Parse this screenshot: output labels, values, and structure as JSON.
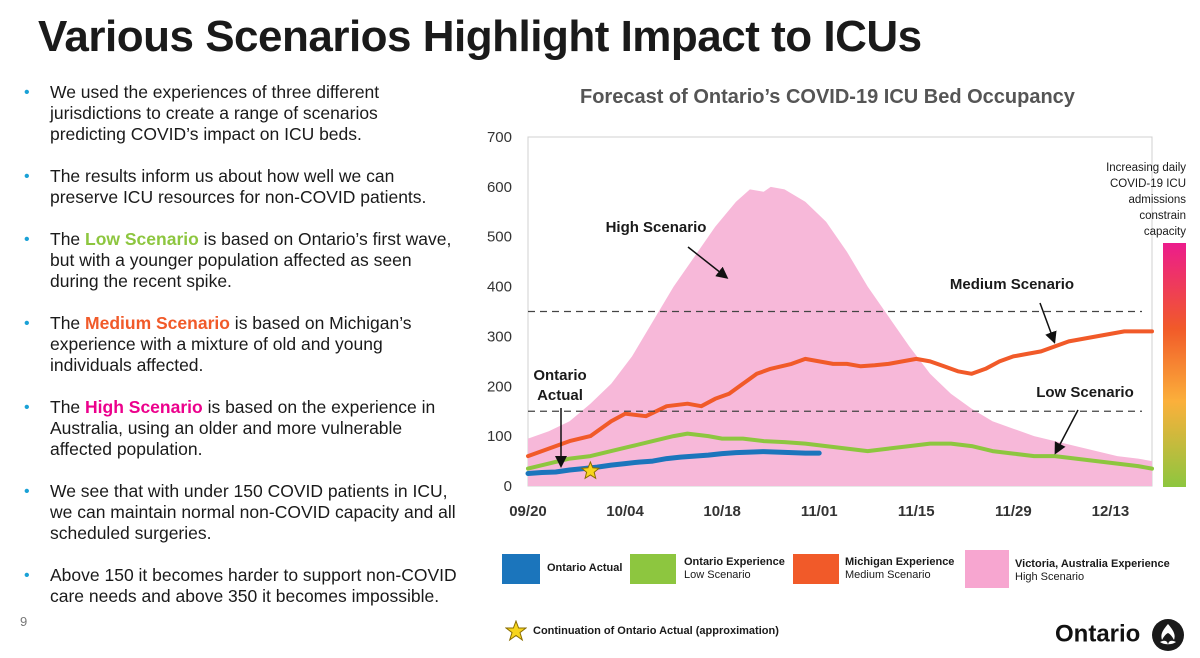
{
  "page": {
    "title": "Various Scenarios Highlight Impact to ICUs",
    "page_number": "9",
    "logo_text": "Ontario"
  },
  "bullets": [
    {
      "pre": "We used the experiences of three different jurisdictions to create a range of scenarios predicting COVID’s impact on ICU beds.",
      "hl": "",
      "post": ""
    },
    {
      "pre": "The results inform us about how well we can preserve ICU resources for non-COVID patients.",
      "hl": "",
      "post": ""
    },
    {
      "pre": "The ",
      "hl": "Low Scenario",
      "post": " is based on Ontario’s first wave, but with a younger population affected as seen during the recent spike."
    },
    {
      "pre": "The ",
      "hl": "Medium Scenario",
      "post": " is based on Michigan’s experience with a mixture of old and young individuals affected."
    },
    {
      "pre": "The ",
      "hl": "High Scenario",
      "post": " is based on the experience in Australia, using an older and more vulnerable affected population."
    },
    {
      "pre": "We see that with under 150 COVID patients in ICU, we can maintain normal non-COVID capacity and all scheduled surgeries.",
      "hl": "",
      "post": ""
    },
    {
      "pre": "Above 150 it becomes harder to support non-COVID care needs and above 350 it becomes impossible.",
      "hl": "",
      "post": ""
    }
  ],
  "colors": {
    "accent_bullet": "#1aa1d6",
    "low": "#8dc63f",
    "medium": "#f15a29",
    "high_fill": "#f7b8d9",
    "high_text": "#ec008c",
    "actual": "#1b75bc",
    "star": "#f7d51d"
  },
  "chart_data": {
    "type": "area",
    "title": "Forecast of Ontario’s COVID-19 ICU Bed Occupancy",
    "xlabel": "",
    "ylabel": "",
    "ylim": [
      0,
      700
    ],
    "y_ticks": [
      0,
      100,
      200,
      300,
      400,
      500,
      600,
      700
    ],
    "x_ticks": [
      {
        "label": "09/20",
        "day": 0
      },
      {
        "label": "10/04",
        "day": 14
      },
      {
        "label": "10/18",
        "day": 28
      },
      {
        "label": "11/01",
        "day": 42
      },
      {
        "label": "11/15",
        "day": 56
      },
      {
        "label": "11/29",
        "day": 70
      },
      {
        "label": "12/13",
        "day": 84
      }
    ],
    "x_range_days": [
      0,
      90
    ],
    "reference_lines": [
      150,
      350
    ],
    "series": [
      {
        "name": "Victoria, Australia Experience",
        "key": "high",
        "style": "area",
        "points": [
          [
            0,
            95
          ],
          [
            3,
            110
          ],
          [
            6,
            130
          ],
          [
            9,
            165
          ],
          [
            12,
            205
          ],
          [
            15,
            260
          ],
          [
            18,
            330
          ],
          [
            21,
            400
          ],
          [
            24,
            460
          ],
          [
            27,
            520
          ],
          [
            30,
            570
          ],
          [
            32,
            595
          ],
          [
            34,
            590
          ],
          [
            35,
            600
          ],
          [
            37,
            595
          ],
          [
            40,
            570
          ],
          [
            43,
            530
          ],
          [
            46,
            470
          ],
          [
            49,
            400
          ],
          [
            52,
            340
          ],
          [
            55,
            280
          ],
          [
            58,
            225
          ],
          [
            61,
            185
          ],
          [
            64,
            155
          ],
          [
            67,
            130
          ],
          [
            70,
            115
          ],
          [
            73,
            100
          ],
          [
            76,
            90
          ],
          [
            79,
            80
          ],
          [
            82,
            70
          ],
          [
            85,
            60
          ],
          [
            88,
            55
          ],
          [
            90,
            50
          ]
        ]
      },
      {
        "name": "Michigan Experience",
        "key": "medium",
        "style": "line",
        "points": [
          [
            0,
            60
          ],
          [
            3,
            75
          ],
          [
            6,
            90
          ],
          [
            9,
            100
          ],
          [
            12,
            130
          ],
          [
            14,
            145
          ],
          [
            17,
            140
          ],
          [
            20,
            160
          ],
          [
            23,
            165
          ],
          [
            25,
            160
          ],
          [
            27,
            175
          ],
          [
            29,
            185
          ],
          [
            31,
            205
          ],
          [
            33,
            225
          ],
          [
            35,
            235
          ],
          [
            38,
            245
          ],
          [
            40,
            255
          ],
          [
            42,
            250
          ],
          [
            44,
            245
          ],
          [
            46,
            245
          ],
          [
            48,
            240
          ],
          [
            50,
            242
          ],
          [
            52,
            245
          ],
          [
            54,
            250
          ],
          [
            56,
            255
          ],
          [
            58,
            250
          ],
          [
            60,
            240
          ],
          [
            62,
            230
          ],
          [
            64,
            225
          ],
          [
            66,
            235
          ],
          [
            68,
            250
          ],
          [
            70,
            260
          ],
          [
            72,
            265
          ],
          [
            74,
            270
          ],
          [
            76,
            280
          ],
          [
            78,
            290
          ],
          [
            80,
            295
          ],
          [
            82,
            300
          ],
          [
            84,
            305
          ],
          [
            86,
            310
          ],
          [
            88,
            310
          ],
          [
            90,
            310
          ]
        ]
      },
      {
        "name": "Ontario Experience",
        "key": "low",
        "style": "line",
        "points": [
          [
            0,
            35
          ],
          [
            3,
            45
          ],
          [
            6,
            55
          ],
          [
            9,
            60
          ],
          [
            12,
            70
          ],
          [
            15,
            80
          ],
          [
            18,
            90
          ],
          [
            21,
            100
          ],
          [
            23,
            105
          ],
          [
            26,
            100
          ],
          [
            28,
            95
          ],
          [
            31,
            95
          ],
          [
            34,
            90
          ],
          [
            37,
            88
          ],
          [
            40,
            85
          ],
          [
            43,
            80
          ],
          [
            46,
            75
          ],
          [
            49,
            70
          ],
          [
            52,
            75
          ],
          [
            55,
            80
          ],
          [
            58,
            85
          ],
          [
            61,
            85
          ],
          [
            64,
            80
          ],
          [
            67,
            70
          ],
          [
            70,
            65
          ],
          [
            73,
            60
          ],
          [
            76,
            60
          ],
          [
            79,
            55
          ],
          [
            82,
            50
          ],
          [
            85,
            45
          ],
          [
            88,
            40
          ],
          [
            90,
            35
          ]
        ]
      },
      {
        "name": "Ontario Actual",
        "key": "actual",
        "style": "line",
        "points": [
          [
            0,
            25
          ],
          [
            2,
            27
          ],
          [
            4,
            28
          ],
          [
            6,
            32
          ],
          [
            8,
            35
          ],
          [
            10,
            38
          ],
          [
            12,
            42
          ],
          [
            14,
            45
          ],
          [
            16,
            48
          ],
          [
            18,
            50
          ],
          [
            20,
            55
          ],
          [
            22,
            58
          ],
          [
            24,
            60
          ],
          [
            26,
            62
          ],
          [
            28,
            65
          ],
          [
            30,
            67
          ],
          [
            32,
            68
          ],
          [
            34,
            69
          ],
          [
            36,
            68
          ],
          [
            38,
            67
          ],
          [
            40,
            66
          ],
          [
            42,
            66
          ]
        ]
      }
    ],
    "star_marker": {
      "day": 9,
      "value": 30
    },
    "annotations": [
      {
        "text": "High Scenario",
        "key": "high_ann"
      },
      {
        "text": "Medium Scenario",
        "key": "med_ann"
      },
      {
        "text": "Low Scenario",
        "key": "low_ann"
      },
      {
        "text": "Ontario Actual",
        "key": "actual_ann"
      }
    ],
    "gradient_bar_label": "Increasing daily COVID-19 ICU admissions constrain capacity",
    "legend": [
      {
        "key": "actual",
        "title": "Ontario Actual",
        "subtitle": ""
      },
      {
        "key": "low",
        "title": "Ontario Experience",
        "subtitle": "Low Scenario"
      },
      {
        "key": "medium",
        "title": "Michigan Experience",
        "subtitle": "Medium Scenario"
      },
      {
        "key": "high",
        "title": "Victoria, Australia Experience",
        "subtitle": "High Scenario"
      }
    ],
    "star_legend": "Continuation of Ontario Actual (approximation)"
  }
}
